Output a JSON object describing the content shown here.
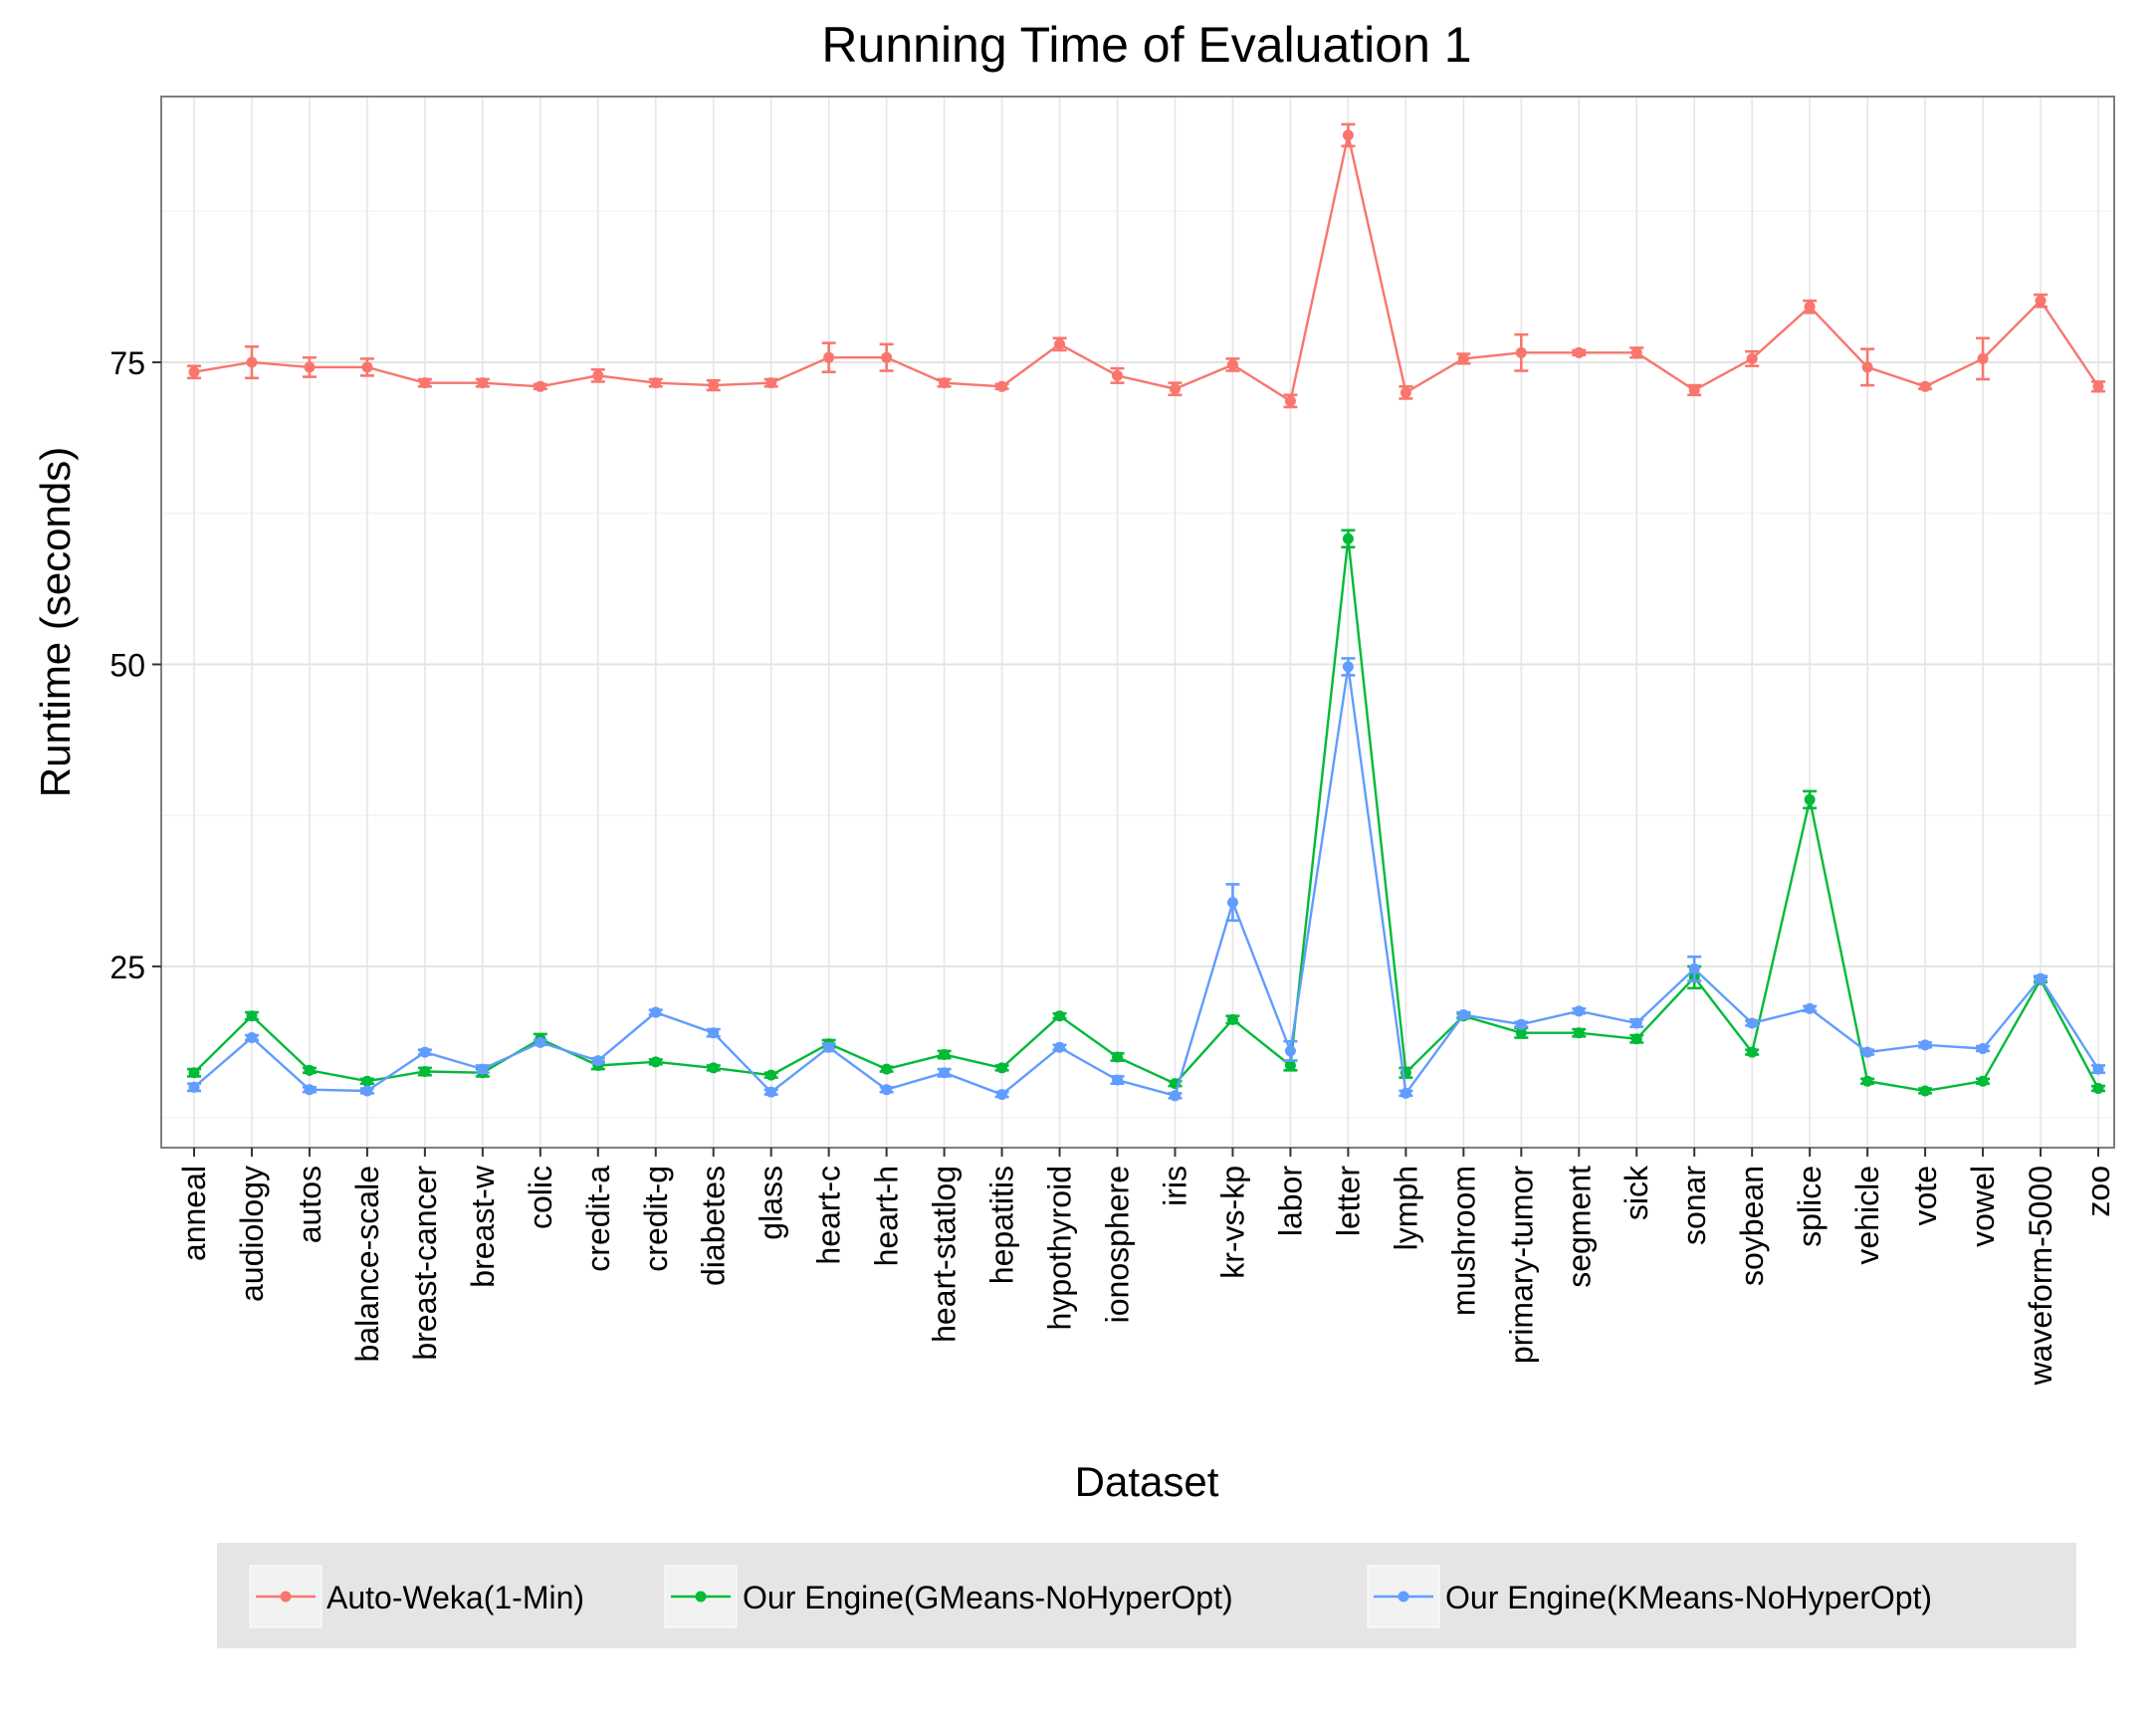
{
  "chart_data": {
    "type": "line",
    "title": "Running Time of Evaluation 1",
    "xlabel": "Dataset",
    "ylabel": "Runtime (seconds)",
    "ylim": [
      10,
      97
    ],
    "yticks": [
      25,
      50,
      75
    ],
    "grid": true,
    "legend_position": "bottom",
    "categories": [
      "anneal",
      "audiology",
      "autos",
      "balance-scale",
      "breast-cancer",
      "breast-w",
      "colic",
      "credit-a",
      "credit-g",
      "diabetes",
      "glass",
      "heart-c",
      "heart-h",
      "heart-statlog",
      "hepatitis",
      "hypothyroid",
      "ionosphere",
      "iris",
      "kr-vs-kp",
      "labor",
      "letter",
      "lymph",
      "mushroom",
      "primary-tumor",
      "segment",
      "sick",
      "sonar",
      "soybean",
      "splice",
      "vehicle",
      "vote",
      "vowel",
      "waveform-5000",
      "zoo"
    ],
    "series": [
      {
        "name": "Auto-Weka(1-Min)",
        "color": "#F8766D",
        "values": [
          74.2,
          75.0,
          74.6,
          74.6,
          73.3,
          73.3,
          73.0,
          73.9,
          73.3,
          73.1,
          73.3,
          75.4,
          75.4,
          73.3,
          73.0,
          76.5,
          73.9,
          72.8,
          74.8,
          71.8,
          93.8,
          72.5,
          75.3,
          75.8,
          75.8,
          75.8,
          72.7,
          75.3,
          79.6,
          74.6,
          73.0,
          75.3,
          80.1,
          73.0
        ],
        "errors": [
          0.5,
          1.3,
          0.8,
          0.7,
          0.3,
          0.3,
          0.2,
          0.5,
          0.3,
          0.4,
          0.3,
          1.2,
          1.1,
          0.3,
          0.2,
          0.5,
          0.6,
          0.5,
          0.5,
          0.5,
          0.9,
          0.5,
          0.4,
          1.5,
          0.2,
          0.4,
          0.4,
          0.6,
          0.5,
          1.5,
          0.2,
          1.7,
          0.5,
          0.4
        ]
      },
      {
        "name": "Our Engine(GMeans-NoHyperOpt)",
        "color": "#00BA38",
        "values": [
          16.2,
          20.9,
          16.4,
          15.5,
          16.3,
          16.2,
          19.0,
          16.8,
          17.1,
          16.6,
          16.0,
          18.6,
          16.5,
          17.7,
          16.6,
          20.9,
          17.5,
          15.3,
          20.6,
          16.8,
          60.4,
          16.2,
          20.9,
          19.5,
          19.5,
          19.0,
          24.1,
          17.9,
          38.8,
          15.5,
          14.7,
          15.5,
          23.9,
          14.9
        ],
        "errors": [
          0.3,
          0.3,
          0.2,
          0.2,
          0.3,
          0.3,
          0.4,
          0.3,
          0.2,
          0.2,
          0.2,
          0.3,
          0.2,
          0.3,
          0.2,
          0.2,
          0.3,
          0.2,
          0.3,
          0.4,
          0.7,
          0.4,
          0.2,
          0.4,
          0.3,
          0.3,
          0.9,
          0.2,
          0.7,
          0.2,
          0.2,
          0.2,
          0.2,
          0.2
        ]
      },
      {
        "name": "Our Engine(KMeans-NoHyperOpt)",
        "color": "#619CFF",
        "values": [
          15.0,
          19.1,
          14.8,
          14.7,
          17.9,
          16.5,
          18.7,
          17.2,
          21.2,
          19.5,
          14.6,
          18.3,
          14.8,
          16.2,
          14.4,
          18.3,
          15.6,
          14.3,
          30.3,
          18.0,
          49.8,
          14.5,
          21.0,
          20.2,
          21.3,
          20.3,
          24.8,
          20.3,
          21.5,
          17.9,
          18.5,
          18.2,
          24.0,
          16.5
        ],
        "errors": [
          0.3,
          0.2,
          0.2,
          0.2,
          0.2,
          0.3,
          0.2,
          0.2,
          0.2,
          0.3,
          0.2,
          0.3,
          0.2,
          0.3,
          0.2,
          0.2,
          0.3,
          0.2,
          1.5,
          0.8,
          0.7,
          0.2,
          0.2,
          0.2,
          0.2,
          0.3,
          1.0,
          0.2,
          0.2,
          0.2,
          0.2,
          0.2,
          0.2,
          0.3
        ]
      }
    ]
  }
}
